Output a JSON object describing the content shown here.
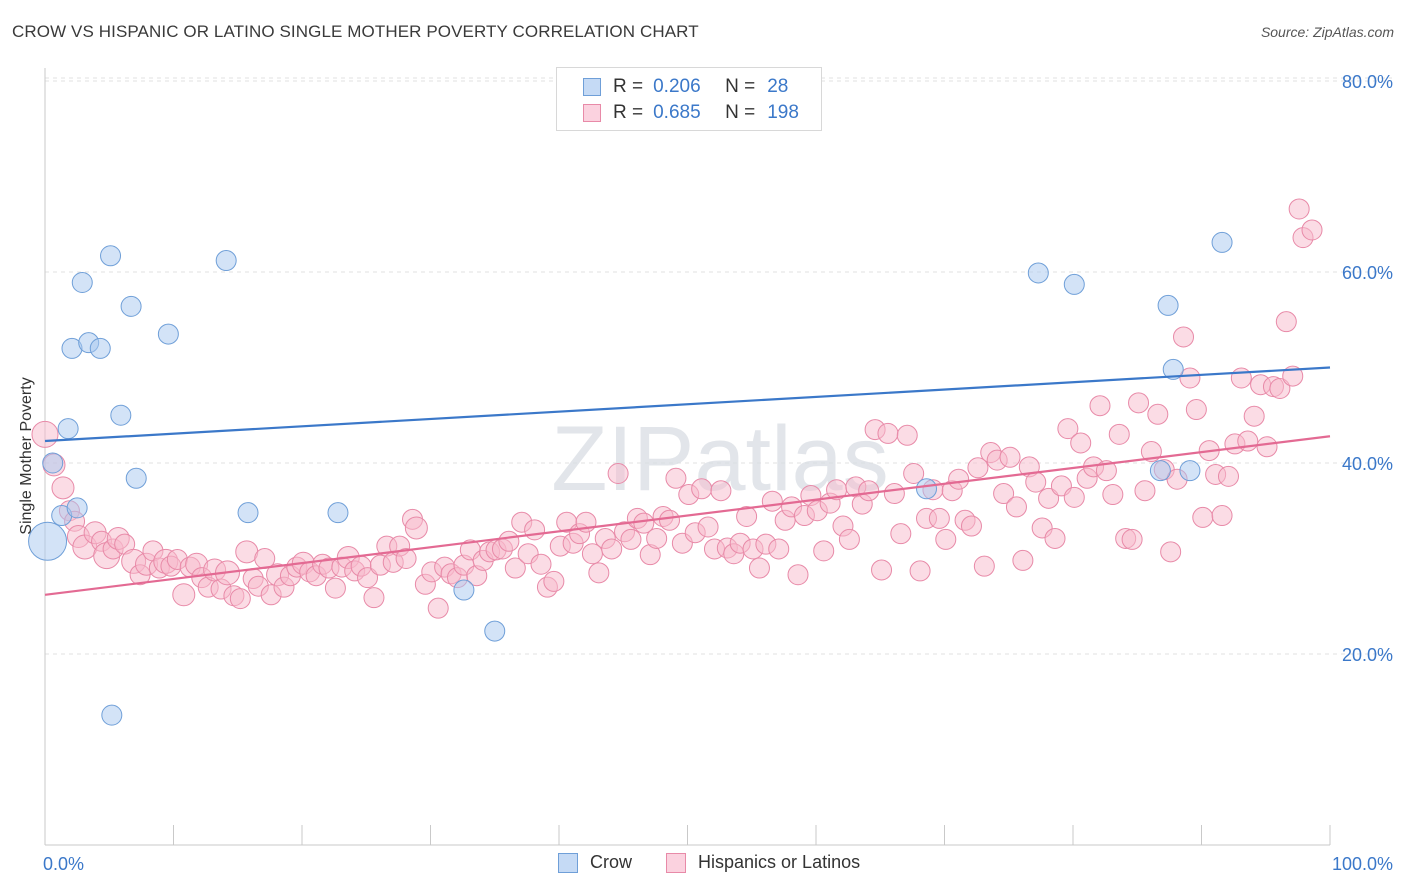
{
  "title": "CROW VS HISPANIC OR LATINO SINGLE MOTHER POVERTY CORRELATION CHART",
  "source": "Source: ZipAtlas.com",
  "watermark": "ZIPatlas",
  "legend": {
    "rows": [
      {
        "r_label": "R =",
        "r_value": "0.206",
        "n_label": "N =",
        "n_value": "28",
        "color": "#a8c8f0",
        "border": "#6f9fd8"
      },
      {
        "r_label": "R =",
        "r_value": "0.685",
        "n_label": "N =",
        "n_value": "198",
        "color": "#f7b9cc",
        "border": "#e88aa8"
      }
    ]
  },
  "bottom_legend": [
    {
      "label": "Crow",
      "color": "#a8c8f0",
      "border": "#6f9fd8"
    },
    {
      "label": "Hispanics or Latinos",
      "color": "#f7b9cc",
      "border": "#e88aa8"
    }
  ],
  "chart_data": {
    "type": "scatter",
    "title": "CROW VS HISPANIC OR LATINO SINGLE MOTHER POVERTY CORRELATION CHART",
    "xlabel": "",
    "ylabel": "Single Mother Poverty",
    "xlim": [
      0,
      100
    ],
    "ylim": [
      0,
      80
    ],
    "x_tick_labels": [
      "0.0%",
      "100.0%"
    ],
    "y_ticks": [
      20,
      40,
      60,
      80
    ],
    "y_tick_labels": [
      "20.0%",
      "40.0%",
      "60.0%",
      "80.0%"
    ],
    "grid": true,
    "series": [
      {
        "name": "Crow",
        "color": "#a8c8f0",
        "stroke": "#6f9fd8",
        "line_color": "#3b78c9",
        "trend": {
          "x": [
            0,
            100
          ],
          "y": [
            42.3,
            50.0
          ]
        },
        "points": [
          [
            0.2,
            31.8,
            1.9
          ],
          [
            0.6,
            40.0,
            1
          ],
          [
            1.3,
            34.5,
            1
          ],
          [
            1.8,
            43.6,
            1
          ],
          [
            2.1,
            52.0,
            1
          ],
          [
            2.5,
            35.3,
            1
          ],
          [
            2.9,
            58.9,
            1
          ],
          [
            3.4,
            52.6,
            1
          ],
          [
            4.3,
            52.0,
            1
          ],
          [
            5.1,
            61.7,
            1
          ],
          [
            5.9,
            45.0,
            1
          ],
          [
            6.7,
            56.4,
            1
          ],
          [
            7.1,
            38.4,
            1
          ],
          [
            9.6,
            53.5,
            1
          ],
          [
            14.1,
            61.2,
            1
          ],
          [
            15.8,
            34.8,
            1
          ],
          [
            22.8,
            34.8,
            1
          ],
          [
            32.6,
            26.7,
            1
          ],
          [
            35.0,
            22.4,
            1
          ],
          [
            5.2,
            13.6,
            1
          ],
          [
            68.6,
            37.3,
            1
          ],
          [
            77.3,
            59.9,
            1
          ],
          [
            80.1,
            58.7,
            1
          ],
          [
            86.8,
            39.2,
            1
          ],
          [
            89.1,
            39.2,
            1
          ],
          [
            87.4,
            56.5,
            1
          ],
          [
            87.8,
            49.8,
            1
          ],
          [
            91.6,
            63.1,
            1
          ]
        ]
      },
      {
        "name": "Hispanics or Latinos",
        "color": "#f7b9cc",
        "stroke": "#e88aa8",
        "line_color": "#e36a93",
        "trend": {
          "x": [
            0,
            100
          ],
          "y": [
            26.2,
            42.8
          ]
        },
        "points": [
          [
            0.0,
            43.0,
            1.3
          ],
          [
            0.7,
            39.8,
            1.1
          ],
          [
            1.4,
            37.4,
            1.1
          ],
          [
            1.9,
            35.0,
            1
          ],
          [
            2.3,
            33.9,
            1
          ],
          [
            2.6,
            32.3,
            1.1
          ],
          [
            3.1,
            31.2,
            1.2
          ],
          [
            3.9,
            32.7,
            1.1
          ],
          [
            4.4,
            31.8,
            1
          ],
          [
            4.8,
            30.3,
            1.3
          ],
          [
            5.3,
            31.0,
            1
          ],
          [
            5.7,
            32.1,
            1.1
          ],
          [
            6.2,
            31.5,
            1
          ],
          [
            6.9,
            29.7,
            1.2
          ],
          [
            7.4,
            28.3,
            1
          ],
          [
            7.9,
            29.4,
            1.1
          ],
          [
            8.4,
            30.8,
            1
          ],
          [
            8.9,
            29.0,
            1
          ],
          [
            9.4,
            29.7,
            1.2
          ],
          [
            9.8,
            29.2,
            1
          ],
          [
            10.3,
            29.9,
            1
          ],
          [
            10.8,
            26.2,
            1.1
          ],
          [
            11.3,
            29.1,
            1
          ],
          [
            11.8,
            29.4,
            1.1
          ],
          [
            12.2,
            28.0,
            1
          ],
          [
            12.7,
            27.0,
            1
          ],
          [
            13.2,
            28.8,
            1.1
          ],
          [
            13.7,
            26.8,
            1
          ],
          [
            14.2,
            28.5,
            1.2
          ],
          [
            14.7,
            26.1,
            1
          ],
          [
            15.2,
            25.8,
            1
          ],
          [
            15.7,
            30.7,
            1.1
          ],
          [
            16.2,
            27.9,
            1
          ],
          [
            16.6,
            27.1,
            1
          ],
          [
            17.1,
            30.0,
            1
          ],
          [
            17.6,
            26.2,
            1
          ],
          [
            18.1,
            28.3,
            1.1
          ],
          [
            18.6,
            27.0,
            1
          ],
          [
            19.1,
            28.2,
            1
          ],
          [
            19.6,
            29.1,
            1
          ],
          [
            20.1,
            29.5,
            1.1
          ],
          [
            20.6,
            28.6,
            1
          ],
          [
            21.1,
            28.2,
            1
          ],
          [
            21.6,
            29.4,
            1
          ],
          [
            22.1,
            29.0,
            1
          ],
          [
            22.6,
            26.9,
            1
          ],
          [
            23.1,
            29.1,
            1
          ],
          [
            23.6,
            30.1,
            1.1
          ],
          [
            24.1,
            28.7,
            1
          ],
          [
            24.6,
            29.2,
            1
          ],
          [
            25.1,
            28.0,
            1
          ],
          [
            25.6,
            25.9,
            1
          ],
          [
            26.1,
            29.3,
            1
          ],
          [
            26.6,
            31.3,
            1
          ],
          [
            27.1,
            29.6,
            1
          ],
          [
            27.6,
            31.3,
            1
          ],
          [
            28.1,
            30.0,
            1
          ],
          [
            28.6,
            34.1,
            1
          ],
          [
            28.9,
            33.2,
            1.1
          ],
          [
            29.6,
            27.3,
            1
          ],
          [
            30.1,
            28.6,
            1
          ],
          [
            30.6,
            24.8,
            1
          ],
          [
            31.1,
            29.1,
            1
          ],
          [
            31.6,
            28.4,
            1
          ],
          [
            32.1,
            28.0,
            1
          ],
          [
            32.6,
            29.3,
            1
          ],
          [
            33.1,
            30.9,
            1
          ],
          [
            33.6,
            28.2,
            1
          ],
          [
            34.1,
            29.8,
            1
          ],
          [
            34.6,
            30.7,
            1
          ],
          [
            35.1,
            30.9,
            1
          ],
          [
            35.6,
            31.0,
            1
          ],
          [
            36.1,
            31.8,
            1
          ],
          [
            36.6,
            29.0,
            1
          ],
          [
            37.1,
            33.8,
            1
          ],
          [
            37.6,
            30.5,
            1
          ],
          [
            38.1,
            33.0,
            1
          ],
          [
            38.6,
            29.4,
            1
          ],
          [
            39.1,
            27.0,
            1
          ],
          [
            39.6,
            27.6,
            1
          ],
          [
            40.1,
            31.3,
            1
          ],
          [
            40.6,
            33.8,
            1
          ],
          [
            41.1,
            31.6,
            1
          ],
          [
            41.6,
            32.6,
            1
          ],
          [
            42.1,
            33.8,
            1
          ],
          [
            42.6,
            30.5,
            1
          ],
          [
            43.1,
            28.5,
            1
          ],
          [
            43.6,
            32.1,
            1
          ],
          [
            44.1,
            31.0,
            1
          ],
          [
            44.6,
            38.9,
            1
          ],
          [
            45.1,
            32.8,
            1
          ],
          [
            45.6,
            32.0,
            1
          ],
          [
            46.1,
            34.2,
            1
          ],
          [
            46.6,
            33.7,
            1
          ],
          [
            47.1,
            30.4,
            1
          ],
          [
            47.6,
            32.1,
            1
          ],
          [
            48.1,
            34.4,
            1
          ],
          [
            48.6,
            34.0,
            1
          ],
          [
            49.1,
            38.4,
            1
          ],
          [
            49.6,
            31.6,
            1
          ],
          [
            50.1,
            36.7,
            1
          ],
          [
            50.6,
            32.7,
            1
          ],
          [
            51.1,
            37.3,
            1
          ],
          [
            51.6,
            33.3,
            1
          ],
          [
            52.1,
            31.0,
            1
          ],
          [
            52.6,
            37.1,
            1
          ],
          [
            53.1,
            31.1,
            1
          ],
          [
            53.6,
            30.5,
            1
          ],
          [
            54.1,
            31.6,
            1
          ],
          [
            54.6,
            34.4,
            1
          ],
          [
            55.1,
            31.0,
            1
          ],
          [
            55.6,
            29.0,
            1
          ],
          [
            56.1,
            31.5,
            1
          ],
          [
            56.6,
            36.0,
            1
          ],
          [
            57.1,
            31.0,
            1
          ],
          [
            57.6,
            34.0,
            1
          ],
          [
            58.1,
            35.4,
            1
          ],
          [
            58.6,
            28.3,
            1
          ],
          [
            59.1,
            34.5,
            1
          ],
          [
            59.6,
            36.6,
            1
          ],
          [
            60.1,
            35.0,
            1
          ],
          [
            60.6,
            30.8,
            1
          ],
          [
            61.1,
            35.8,
            1
          ],
          [
            61.6,
            37.2,
            1
          ],
          [
            62.1,
            33.4,
            1
          ],
          [
            62.6,
            32.0,
            1
          ],
          [
            63.1,
            37.5,
            1
          ],
          [
            63.6,
            35.7,
            1
          ],
          [
            64.1,
            37.1,
            1
          ],
          [
            64.6,
            43.5,
            1
          ],
          [
            65.1,
            28.8,
            1
          ],
          [
            65.6,
            43.1,
            1
          ],
          [
            66.1,
            36.8,
            1
          ],
          [
            66.6,
            32.6,
            1
          ],
          [
            67.1,
            42.9,
            1
          ],
          [
            67.6,
            38.9,
            1
          ],
          [
            68.1,
            28.7,
            1
          ],
          [
            68.6,
            34.2,
            1
          ],
          [
            69.1,
            37.2,
            1
          ],
          [
            69.6,
            34.2,
            1
          ],
          [
            70.1,
            32.0,
            1
          ],
          [
            70.6,
            37.1,
            1
          ],
          [
            71.1,
            38.3,
            1
          ],
          [
            71.6,
            34.0,
            1
          ],
          [
            72.1,
            33.4,
            1
          ],
          [
            72.6,
            39.5,
            1
          ],
          [
            73.1,
            29.2,
            1
          ],
          [
            73.6,
            41.1,
            1
          ],
          [
            74.1,
            40.3,
            1
          ],
          [
            74.6,
            36.8,
            1
          ],
          [
            75.1,
            40.6,
            1
          ],
          [
            75.6,
            35.4,
            1
          ],
          [
            76.1,
            29.8,
            1
          ],
          [
            76.6,
            39.6,
            1
          ],
          [
            77.1,
            38.0,
            1
          ],
          [
            77.6,
            33.2,
            1
          ],
          [
            78.1,
            36.3,
            1
          ],
          [
            78.6,
            32.1,
            1
          ],
          [
            79.1,
            37.6,
            1
          ],
          [
            79.6,
            43.6,
            1
          ],
          [
            80.1,
            36.4,
            1
          ],
          [
            80.6,
            42.1,
            1
          ],
          [
            81.1,
            38.4,
            1
          ],
          [
            81.6,
            39.6,
            1
          ],
          [
            82.1,
            46.0,
            1
          ],
          [
            82.6,
            39.2,
            1
          ],
          [
            83.1,
            36.7,
            1
          ],
          [
            83.6,
            43.0,
            1
          ],
          [
            84.1,
            32.1,
            1
          ],
          [
            84.6,
            32.0,
            1
          ],
          [
            85.1,
            46.3,
            1
          ],
          [
            85.6,
            37.1,
            1
          ],
          [
            86.1,
            41.2,
            1
          ],
          [
            86.6,
            45.1,
            1
          ],
          [
            87.1,
            39.3,
            1
          ],
          [
            87.6,
            30.7,
            1
          ],
          [
            88.1,
            38.3,
            1
          ],
          [
            88.6,
            53.2,
            1
          ],
          [
            89.1,
            48.9,
            1
          ],
          [
            89.6,
            45.6,
            1
          ],
          [
            90.1,
            34.3,
            1
          ],
          [
            90.6,
            41.3,
            1
          ],
          [
            91.1,
            38.8,
            1
          ],
          [
            91.6,
            34.5,
            1
          ],
          [
            92.1,
            38.6,
            1
          ],
          [
            92.6,
            42.0,
            1
          ],
          [
            93.1,
            48.9,
            1
          ],
          [
            93.6,
            42.3,
            1
          ],
          [
            94.1,
            44.9,
            1
          ],
          [
            94.6,
            48.2,
            1
          ],
          [
            95.1,
            41.7,
            1
          ],
          [
            95.6,
            48.0,
            1
          ],
          [
            96.1,
            47.8,
            1
          ],
          [
            96.6,
            54.8,
            1
          ],
          [
            97.1,
            49.1,
            1
          ],
          [
            97.6,
            66.6,
            1
          ],
          [
            97.9,
            63.6,
            1
          ],
          [
            98.6,
            64.4,
            1
          ]
        ]
      }
    ]
  }
}
